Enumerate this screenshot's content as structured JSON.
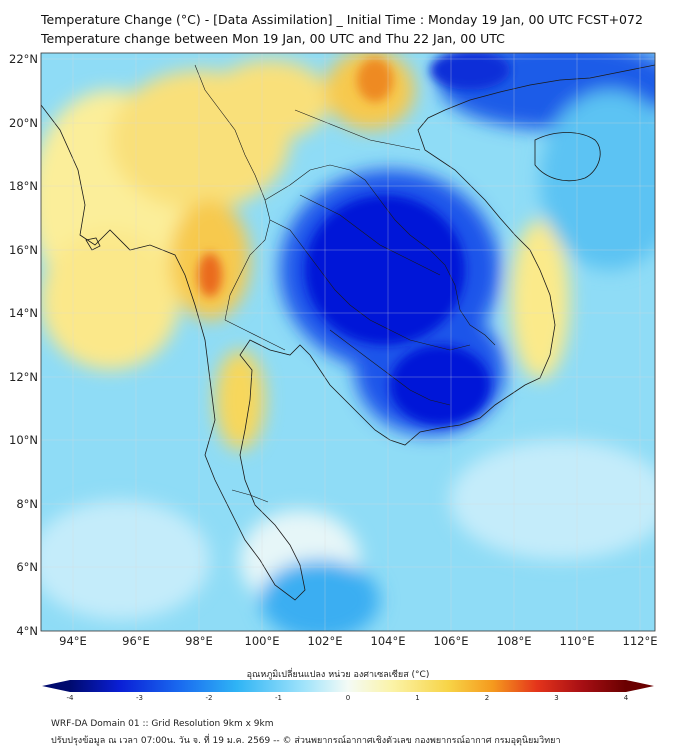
{
  "header": {
    "title_line1": "Temperature Change (°C) - [Data Assimilation] _ Initial Time : Monday 19 Jan, 00 UTC FCST+072",
    "title_line2": "Temperature change between Mon 19 Jan, 00 UTC and Thu 22 Jan, 00 UTC"
  },
  "map": {
    "lat_labels": [
      "22°N",
      "20°N",
      "18°N",
      "16°N",
      "14°N",
      "12°N",
      "10°N",
      "8°N",
      "6°N",
      "4°N"
    ],
    "lon_labels": [
      "94°E",
      "96°E",
      "98°E",
      "100°E",
      "102°E",
      "104°E",
      "106°E",
      "108°E",
      "110°E",
      "112°E"
    ],
    "lat_range": [
      4,
      22
    ],
    "lon_range": [
      93,
      112.5
    ],
    "field": "temperature change",
    "gridlines": true
  },
  "colorbar": {
    "label": "อุณหภูมิเปลี่ยนแปลง หน่วย องศาเซลเซียส (°C)",
    "ticks": [
      "-4",
      "-3",
      "-2",
      "-1",
      "0",
      "1",
      "2",
      "3",
      "4"
    ],
    "range": [
      -4,
      4
    ],
    "colors": [
      "#000a6e",
      "#0a1fd6",
      "#1a6cf0",
      "#2fb4f5",
      "#9fe3fb",
      "#f4fbf6",
      "#fbf3a7",
      "#f7d447",
      "#f59a1e",
      "#e4341b",
      "#a80f14",
      "#6a0000"
    ],
    "extend": "both"
  },
  "footer": {
    "line1": "WRF-DA Domain 01 :: Grid Resolution 9km x 9km",
    "line2": "ปรับปรุงข้อมูล ณ เวลา 07:00น. วัน จ. ที่ 19 ม.ค. 2569 -- © ส่วนพยากรณ์อากาศเชิงตัวเลข กองพยากรณ์อากาศ กรมอุตุนิยมวิทยา"
  }
}
